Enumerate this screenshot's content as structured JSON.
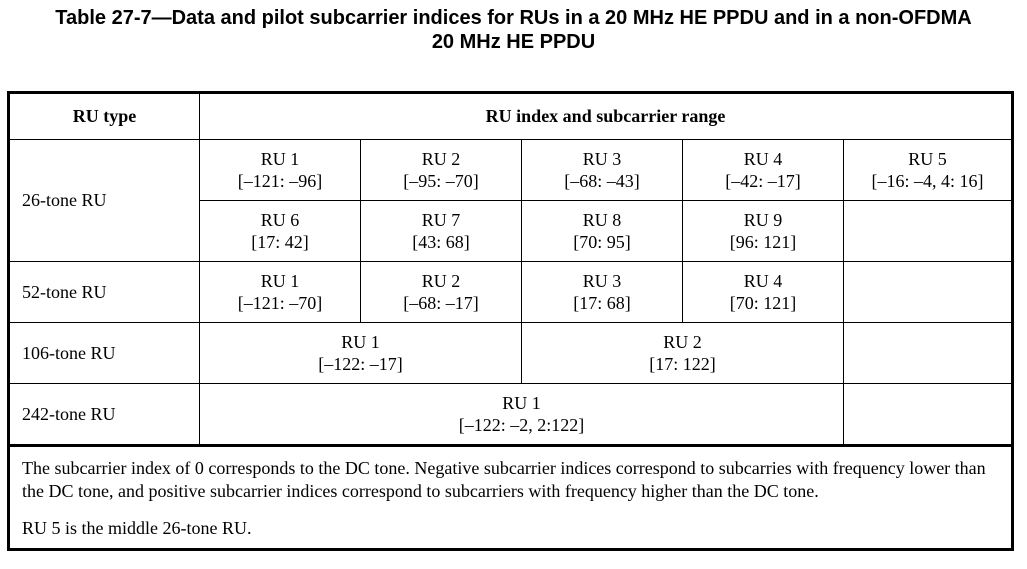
{
  "caption": {
    "line1": "Table 27-7—Data and pilot subcarrier indices for RUs in a 20 MHz HE PPDU and in a non-OFDMA",
    "line2": "20 MHz HE PPDU"
  },
  "header": {
    "ru_type": "RU type",
    "ru_range": "RU index and subcarrier range"
  },
  "rows": {
    "tone26": {
      "label": "26-tone RU",
      "ru1": {
        "name": "RU 1",
        "range": "[–121: –96]"
      },
      "ru2": {
        "name": "RU 2",
        "range": "[–95: –70]"
      },
      "ru3": {
        "name": "RU 3",
        "range": "[–68: –43]"
      },
      "ru4": {
        "name": "RU 4",
        "range": "[–42: –17]"
      },
      "ru5": {
        "name": "RU 5",
        "range": "[–16: –4, 4: 16]"
      },
      "ru6": {
        "name": "RU 6",
        "range": "[17: 42]"
      },
      "ru7": {
        "name": "RU 7",
        "range": "[43: 68]"
      },
      "ru8": {
        "name": "RU 8",
        "range": "[70: 95]"
      },
      "ru9": {
        "name": "RU 9",
        "range": "[96: 121]"
      }
    },
    "tone52": {
      "label": "52-tone RU",
      "ru1": {
        "name": "RU 1",
        "range": "[–121: –70]"
      },
      "ru2": {
        "name": "RU 2",
        "range": "[–68: –17]"
      },
      "ru3": {
        "name": "RU 3",
        "range": "[17: 68]"
      },
      "ru4": {
        "name": "RU 4",
        "range": "[70: 121]"
      }
    },
    "tone106": {
      "label": "106-tone RU",
      "ru1": {
        "name": "RU 1",
        "range": "[–122: –17]"
      },
      "ru2": {
        "name": "RU 2",
        "range": "[17: 122]"
      }
    },
    "tone242": {
      "label": "242-tone RU",
      "ru1": {
        "name": "RU 1",
        "range": "[–122: –2, 2:122]"
      }
    }
  },
  "notes": {
    "note1": "The subcarrier index of 0 corresponds to the DC tone. Negative subcarrier indices correspond to subcarries with frequency lower than the DC tone, and positive subcarrier indices correspond to subcarriers with frequency higher than the DC tone.",
    "note2": "RU 5 is the middle 26-tone RU."
  }
}
